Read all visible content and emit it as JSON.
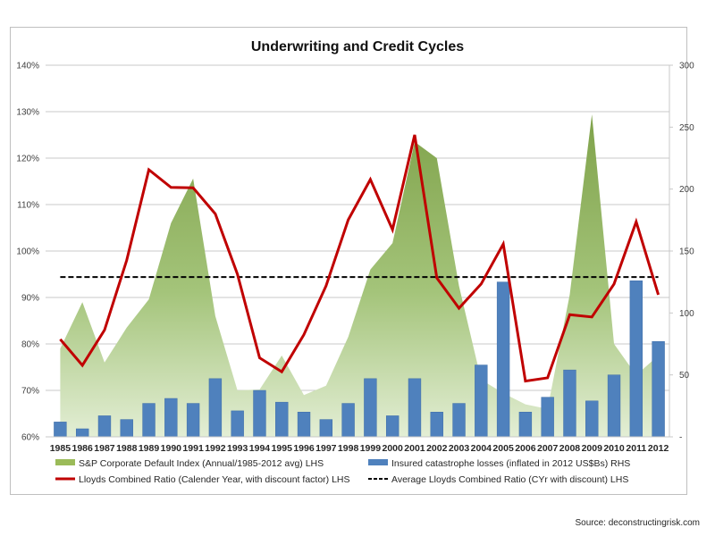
{
  "chart_data": {
    "type": "combo",
    "title": "Underwriting and Credit Cycles",
    "categories": [
      "1985",
      "1986",
      "1987",
      "1988",
      "1989",
      "1990",
      "1991",
      "1992",
      "1993",
      "1994",
      "1995",
      "1996",
      "1997",
      "1998",
      "1999",
      "2000",
      "2001",
      "2002",
      "2003",
      "2004",
      "2005",
      "2006",
      "2007",
      "2008",
      "2009",
      "2010",
      "2011",
      "2012"
    ],
    "left_axis": {
      "min": 0.6,
      "max": 1.4,
      "step": 0.1,
      "tick_labels": [
        "60%",
        "70%",
        "80%",
        "90%",
        "100%",
        "110%",
        "120%",
        "130%",
        "140%"
      ]
    },
    "right_axis": {
      "min": 0,
      "max": 300,
      "step": 50,
      "tick_labels": [
        "-",
        "50",
        "100",
        "150",
        "200",
        "250",
        "300"
      ]
    },
    "grid": true,
    "legend_position": "bottom",
    "series": [
      {
        "name": "S&P Corporate Default Index (Annual/1985-2012 avg) LHS",
        "kind": "area",
        "axis": "left",
        "color": "#8fb35e",
        "values": [
          0.79,
          0.89,
          0.76,
          0.835,
          0.896,
          1.06,
          1.156,
          0.86,
          0.7,
          0.702,
          0.775,
          0.69,
          0.71,
          0.815,
          0.96,
          1.017,
          1.235,
          1.2,
          0.925,
          0.723,
          0.694,
          0.67,
          0.66,
          0.906,
          1.294,
          0.8,
          0.733,
          0.775
        ]
      },
      {
        "name": "Insured catastrophe losses (inflated in 2012 US$Bs) RHS",
        "kind": "bar",
        "axis": "right",
        "color": "#4f81bd",
        "values": [
          12,
          6.5,
          17,
          14,
          27,
          31,
          27,
          47,
          21,
          37.5,
          28,
          20,
          14,
          27,
          47,
          17,
          47,
          20,
          27,
          58,
          125,
          20,
          32,
          54,
          29,
          50,
          126,
          77
        ]
      },
      {
        "name": "Lloyds Combined Ratio (Calender Year, with discount factor) LHS",
        "kind": "line",
        "axis": "left",
        "color": "#c00000",
        "values": [
          0.81,
          0.754,
          0.83,
          0.98,
          1.175,
          1.137,
          1.136,
          1.08,
          0.95,
          0.77,
          0.74,
          0.82,
          0.925,
          1.067,
          1.154,
          1.046,
          1.25,
          0.942,
          0.877,
          0.929,
          1.015,
          0.72,
          0.727,
          0.863,
          0.858,
          0.929,
          1.063,
          0.906
        ]
      },
      {
        "name": "Average Lloyds Combined Ratio (CYr with discount) LHS",
        "kind": "dashed-line",
        "axis": "left",
        "color": "#000000",
        "value": 0.944
      }
    ]
  },
  "source": "Source: deconstructingrisk.com"
}
